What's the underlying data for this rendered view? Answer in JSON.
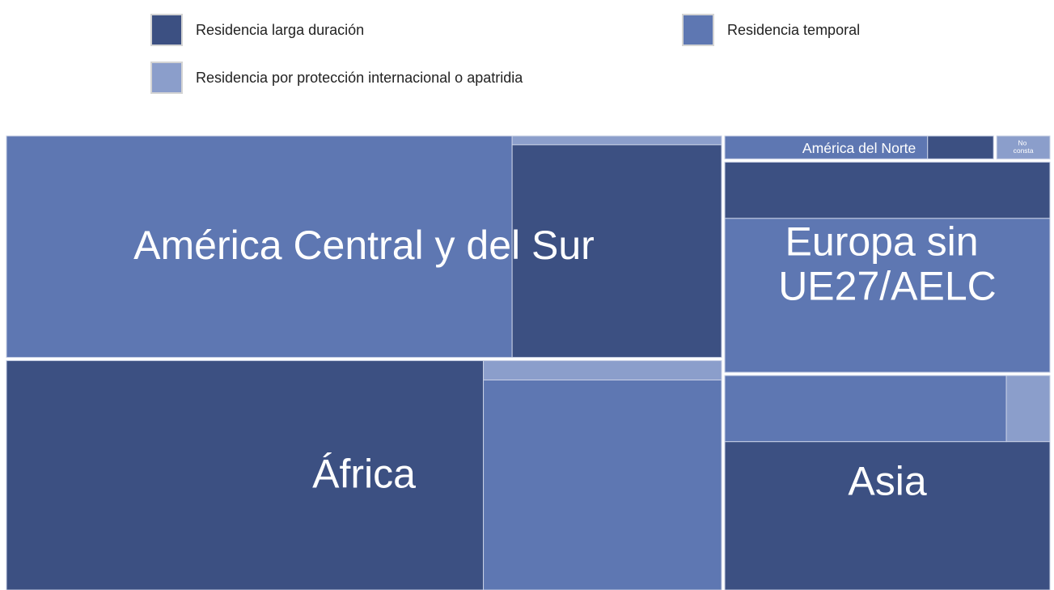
{
  "chart_data": {
    "type": "treemap",
    "legend": "top",
    "categories": [
      "América Central y del Sur",
      "África",
      "América del Norte",
      "No consta",
      "Europa sin UE27/AELC",
      "Asia"
    ],
    "series": [
      {
        "name": "Residencia larga duración",
        "color": "#3c5082",
        "values": [
          67.6,
          166,
          2.6,
          null,
          27.9,
          73.7
        ]
      },
      {
        "name": "Residencia temporal",
        "color": "#5e77b2",
        "values": [
          170,
          75.9,
          8,
          null,
          76.5,
          28.4
        ]
      },
      {
        "name": "Residencia por protección internacional o apatridia",
        "color": "#8b9ecb",
        "values": [
          2.8,
          7,
          null,
          2.2,
          null,
          4.4
        ]
      }
    ]
  }
}
